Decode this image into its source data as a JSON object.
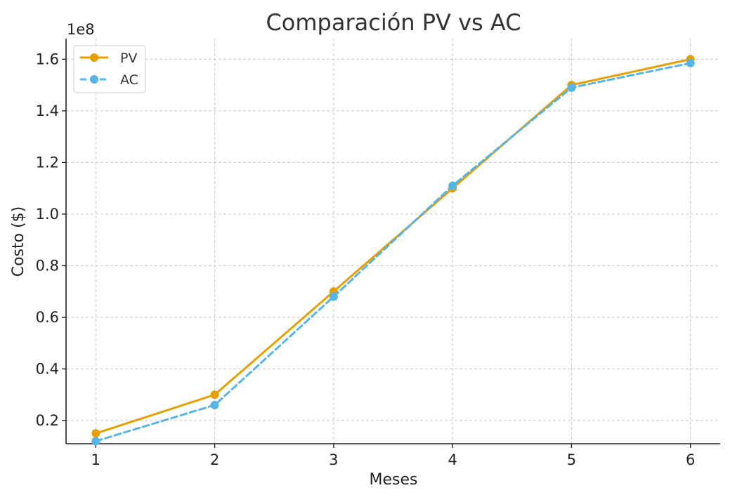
{
  "chart_data": {
    "type": "line",
    "title": "Comparación PV vs AC",
    "xlabel": "Meses",
    "ylabel": "Costo ($)",
    "y_offset_label": "1e8",
    "x": [
      1,
      2,
      3,
      4,
      5,
      6
    ],
    "x_tick_labels": [
      "1",
      "2",
      "3",
      "4",
      "5",
      "6"
    ],
    "y_ticks": [
      0.2,
      0.4,
      0.6,
      0.8,
      1.0,
      1.2,
      1.4,
      1.6
    ],
    "y_tick_labels": [
      "0.2",
      "0.4",
      "0.6",
      "0.8",
      "1.0",
      "1.2",
      "1.4",
      "1.6"
    ],
    "xlim": [
      0.75,
      6.25
    ],
    "ylim": [
      0.11,
      1.68
    ],
    "grid": true,
    "legend_position": "top-left",
    "series": [
      {
        "name": "PV",
        "values": [
          0.15,
          0.3,
          0.7,
          1.1,
          1.5,
          1.6
        ],
        "color": "#E69F00",
        "line_style": "solid",
        "marker": "circle"
      },
      {
        "name": "AC",
        "values": [
          0.12,
          0.26,
          0.68,
          1.11,
          1.49,
          1.585
        ],
        "color": "#56B4E9",
        "line_style": "dashed",
        "marker": "circle"
      }
    ]
  }
}
